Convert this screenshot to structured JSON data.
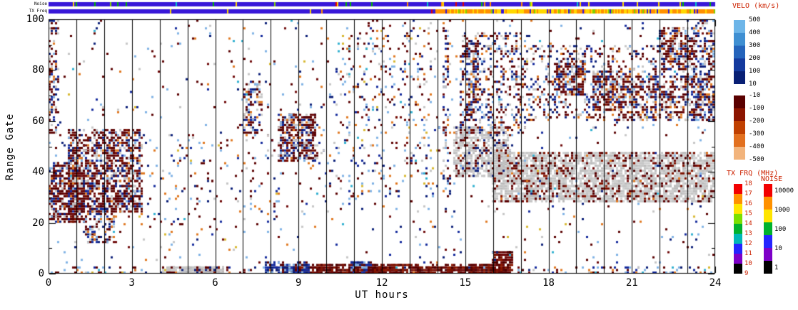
{
  "chart_data": {
    "type": "heatmap",
    "title": "",
    "xlabel": "UT hours",
    "ylabel": "Range Gate",
    "xlim": [
      0,
      24
    ],
    "ylim": [
      0,
      100
    ],
    "x_ticks": [
      "0",
      "3",
      "6",
      "9",
      "12",
      "15",
      "18",
      "21",
      "24"
    ],
    "y_ticks": [
      "0",
      "20",
      "40",
      "60",
      "80",
      "100"
    ],
    "hour_lines": [
      1,
      2,
      3,
      4,
      5,
      6,
      7,
      8,
      9,
      10,
      11,
      12,
      13,
      14,
      15,
      16,
      17,
      18,
      19,
      20,
      21,
      22,
      23
    ],
    "grid": "off",
    "seed": 1337,
    "title_color": "#cc2200",
    "strips": {
      "noise": {
        "label": "Noise",
        "base": "#3818d8",
        "tick_prob": 0.06,
        "tick_prob_high": 0.14,
        "tick_palette": "striptick"
      },
      "txfreq": {
        "label": "TX Freq",
        "base": "#3818d8",
        "switch_time": 13.9,
        "pre_tick_prob": 0.02,
        "high_palette": "txhigh"
      }
    },
    "palettes": {
      "neg": [
        [
          "#5a0000",
          3
        ],
        [
          "#6e0808",
          2
        ],
        [
          "#7e1200",
          2
        ],
        [
          "#490000",
          1
        ],
        [
          "#8c1800",
          1
        ]
      ],
      "pos": [
        [
          "#0a1e78",
          3
        ],
        [
          "#13299c",
          2
        ],
        [
          "#061250",
          2
        ],
        [
          "#1b35b0",
          1
        ]
      ],
      "gs": [
        [
          "#c6c6c6",
          3
        ],
        [
          "#bdbdbd",
          2
        ],
        [
          "#d0d0d0",
          2
        ]
      ],
      "negmix": [
        [
          "#5a0000",
          30
        ],
        [
          "#6e0808",
          15
        ],
        [
          "#7e1200",
          10
        ],
        [
          "#0a1e78",
          10
        ],
        [
          "#13299c",
          8
        ],
        [
          "#c6c6c6",
          15
        ],
        [
          "#7fb2e5",
          6
        ],
        [
          "#e07820",
          6
        ]
      ],
      "posmix": [
        [
          "#0a1e78",
          30
        ],
        [
          "#13299c",
          20
        ],
        [
          "#1b35b0",
          10
        ],
        [
          "#5a0000",
          20
        ],
        [
          "#7fb2e5",
          20
        ]
      ],
      "gsmix": [
        [
          "#c6c6c6",
          40
        ],
        [
          "#bdbdbd",
          20
        ],
        [
          "#d0d0d0",
          10
        ],
        [
          "#5a0000",
          14
        ],
        [
          "#7e1200",
          6
        ],
        [
          "#0a1e78",
          10
        ]
      ],
      "mix": [
        [
          "#5a0000",
          24
        ],
        [
          "#6e0808",
          14
        ],
        [
          "#0a1e78",
          16
        ],
        [
          "#13299c",
          12
        ],
        [
          "#c6c6c6",
          14
        ],
        [
          "#7fb2e5",
          10
        ],
        [
          "#e07820",
          10
        ]
      ],
      "noise": [
        [
          "#5a0000",
          20
        ],
        [
          "#6e0808",
          10
        ],
        [
          "#0a1e78",
          14
        ],
        [
          "#13299c",
          8
        ],
        [
          "#c6c6c6",
          12
        ],
        [
          "#7fb2e5",
          16
        ],
        [
          "#e07820",
          13
        ],
        [
          "#30b0d0",
          4
        ],
        [
          "#d8b830",
          3
        ]
      ],
      "striptick": [
        [
          "#00b400",
          30
        ],
        [
          "#80d800",
          10
        ],
        [
          "#ffd800",
          20
        ],
        [
          "#ff8c00",
          18
        ],
        [
          "#00c8c8",
          10
        ],
        [
          "#e00000",
          12
        ]
      ],
      "txhigh": [
        [
          "#ff9000",
          46
        ],
        [
          "#ffd800",
          38
        ],
        [
          "#3818d8",
          8
        ],
        [
          "#80d000",
          8
        ]
      ]
    },
    "clusters": [
      [
        0.0,
        0.35,
        55,
        100,
        110,
        "mix"
      ],
      [
        0.05,
        1.3,
        20,
        44,
        500,
        "negmix"
      ],
      [
        0.7,
        3.35,
        24,
        57,
        1250,
        "negmix"
      ],
      [
        1.3,
        2.4,
        12,
        26,
        140,
        "mix"
      ],
      [
        7.0,
        7.7,
        55,
        76,
        120,
        "mix"
      ],
      [
        8.3,
        9.65,
        44,
        63,
        430,
        "negmix"
      ],
      [
        10.3,
        14.0,
        58,
        100,
        180,
        "noise"
      ],
      [
        14.6,
        16.6,
        38,
        58,
        650,
        "gsmix"
      ],
      [
        16.0,
        24.0,
        28,
        48,
        3000,
        "gs"
      ],
      [
        16.0,
        24.0,
        28,
        48,
        430,
        "neg"
      ],
      [
        14.8,
        17.2,
        55,
        95,
        430,
        "mix"
      ],
      [
        17.2,
        24.0,
        60,
        90,
        780,
        "mix"
      ],
      [
        18.3,
        19.3,
        70,
        84,
        200,
        "negmix"
      ],
      [
        19.6,
        20.7,
        64,
        80,
        210,
        "negmix"
      ],
      [
        22.0,
        23.3,
        80,
        97,
        230,
        "negmix"
      ],
      [
        20.5,
        24.0,
        60,
        78,
        330,
        "negmix"
      ],
      [
        23.2,
        24.0,
        60,
        100,
        180,
        "mix"
      ],
      [
        15.0,
        15.5,
        60,
        92,
        140,
        "mix"
      ],
      [
        14.2,
        14.45,
        30,
        100,
        90,
        "mix"
      ],
      [
        0.0,
        24.0,
        0,
        3,
        260,
        "noise"
      ],
      [
        4.1,
        6.3,
        0,
        3,
        200,
        "gsmix"
      ],
      [
        8.4,
        16.4,
        0,
        3.6,
        820,
        "neg"
      ],
      [
        7.8,
        9.4,
        0,
        4.5,
        130,
        "posmix"
      ],
      [
        10.8,
        11.6,
        0,
        5,
        70,
        "posmix"
      ],
      [
        16.0,
        16.7,
        0,
        9,
        170,
        "neg"
      ],
      [
        0.0,
        24.0,
        4,
        100,
        850,
        "noise"
      ],
      [
        9.7,
        14.5,
        30,
        58,
        140,
        "noise"
      ],
      [
        3.3,
        8.3,
        15,
        55,
        120,
        "noise"
      ]
    ],
    "colorbars": {
      "velo": {
        "title": "VELO (km/s)",
        "label_color": "#000000",
        "pos_colors": [
          "#6db5e8",
          "#3f8fd2",
          "#2564bb",
          "#143a9e",
          "#081f74"
        ],
        "neg_colors": [
          "#5a0000",
          "#8c1500",
          "#c04000",
          "#e2701f",
          "#f2b47c"
        ],
        "pos_labels": [
          "500",
          "400",
          "300",
          "200",
          "100",
          "10"
        ],
        "neg_labels": [
          "-10",
          "-100",
          "-200",
          "-300",
          "-400",
          "-500"
        ]
      },
      "txfrq": {
        "title": "TX FRQ (MHz)",
        "label_color": "#cc2200",
        "colors": [
          "#f20000",
          "#ff9100",
          "#ffe500",
          "#7be000",
          "#00b22d",
          "#00b7b7",
          "#2424ff",
          "#7d00c8",
          "#000000"
        ],
        "labels": [
          "18",
          "17",
          "16",
          "15",
          "14",
          "13",
          "12",
          "11",
          "10",
          "9"
        ]
      },
      "noise": {
        "title": "NOISE",
        "label_color": "#000000",
        "colors": [
          "#f20000",
          "#ff9100",
          "#ffe500",
          "#00b22d",
          "#2424ff",
          "#7d00c8",
          "#000000"
        ],
        "labels": [
          "10000",
          "1000",
          "100",
          "10",
          "1"
        ]
      }
    }
  }
}
